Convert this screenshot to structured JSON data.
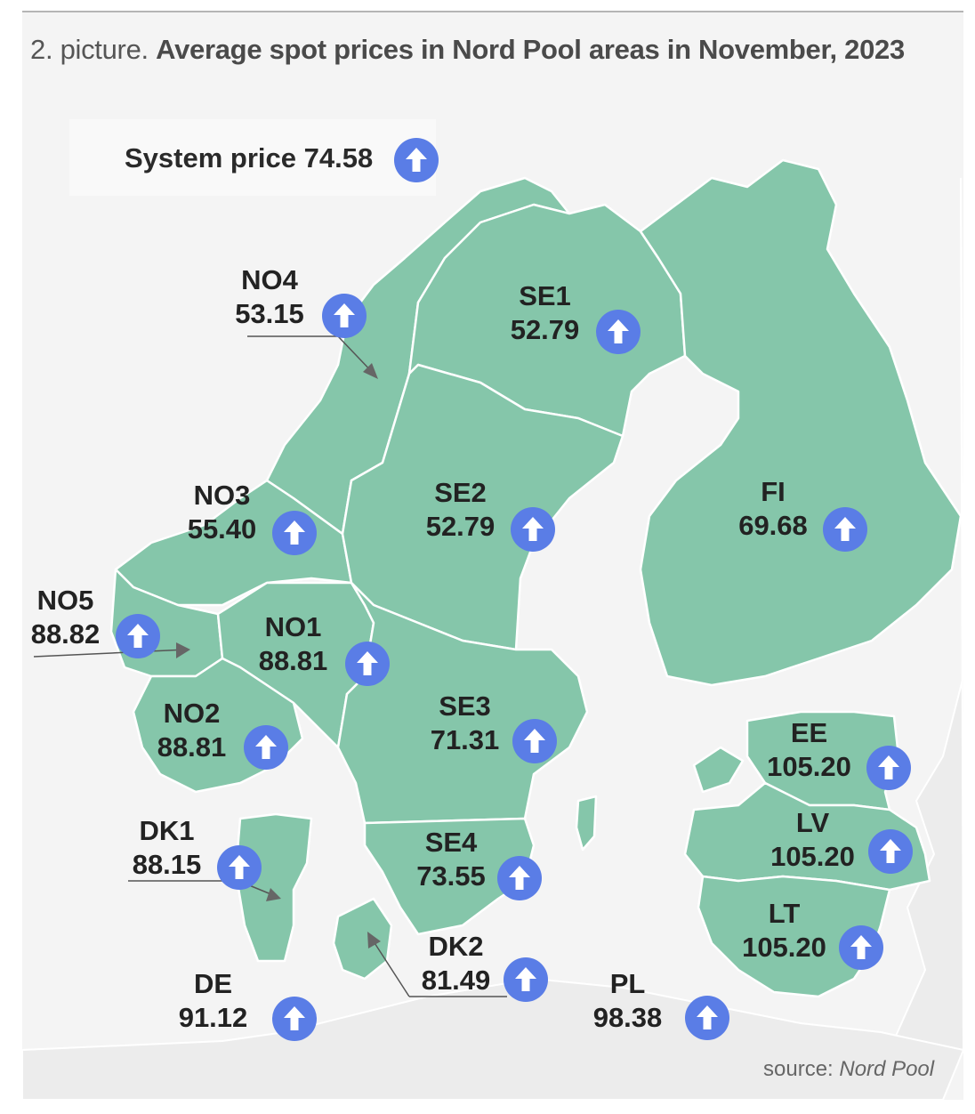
{
  "title": {
    "prefix": "2. picture.",
    "main": "Average spot prices in Nord Pool areas in November, 2023"
  },
  "system_price": {
    "label": "System price",
    "value": "74.58",
    "trend_icon": "up-arrow-icon"
  },
  "source": {
    "prefix": "source:",
    "name": "Nord Pool"
  },
  "colors": {
    "area_fill": "#85c6aa",
    "arrow_badge": "#5a7de6",
    "background": "#f4f4f4"
  },
  "areas": [
    {
      "code": "NO4",
      "price": "53.15",
      "trend": "up"
    },
    {
      "code": "SE1",
      "price": "52.79",
      "trend": "up"
    },
    {
      "code": "NO3",
      "price": "55.40",
      "trend": "up"
    },
    {
      "code": "SE2",
      "price": "52.79",
      "trend": "up"
    },
    {
      "code": "FI",
      "price": "69.68",
      "trend": "up"
    },
    {
      "code": "NO5",
      "price": "88.82",
      "trend": "up"
    },
    {
      "code": "NO1",
      "price": "88.81",
      "trend": "up"
    },
    {
      "code": "SE3",
      "price": "71.31",
      "trend": "up"
    },
    {
      "code": "NO2",
      "price": "88.81",
      "trend": "up"
    },
    {
      "code": "EE",
      "price": "105.20",
      "trend": "up"
    },
    {
      "code": "DK1",
      "price": "88.15",
      "trend": "up"
    },
    {
      "code": "SE4",
      "price": "73.55",
      "trend": "up"
    },
    {
      "code": "LV",
      "price": "105.20",
      "trend": "up"
    },
    {
      "code": "LT",
      "price": "105.20",
      "trend": "up"
    },
    {
      "code": "DK2",
      "price": "81.49",
      "trend": "up"
    },
    {
      "code": "DE",
      "price": "91.12",
      "trend": "up"
    },
    {
      "code": "PL",
      "price": "98.38",
      "trend": "up"
    }
  ]
}
